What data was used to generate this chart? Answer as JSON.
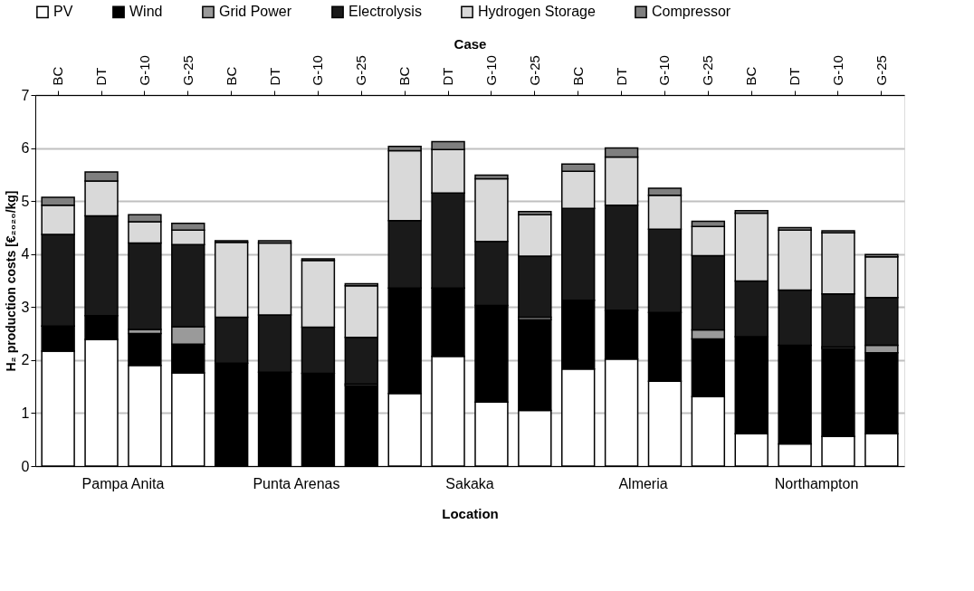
{
  "chart_data": {
    "type": "bar",
    "stacked": true,
    "xlabel": "Location",
    "x2label": "Case",
    "ylabel": "H₂ production costs [€₂₀₂₀/kg]",
    "categories": [
      "BC",
      "DT",
      "G-10",
      "G-25",
      "BC",
      "DT",
      "G-10",
      "G-25",
      "BC",
      "DT",
      "G-10",
      "G-25",
      "BC",
      "DT",
      "G-10",
      "G-25",
      "BC",
      "DT",
      "G-10",
      "G-25"
    ],
    "series": [
      {
        "name": "PV",
        "color": "#ffffff",
        "values": [
          2.17,
          2.39,
          1.9,
          1.76,
          0,
          0,
          0,
          0,
          1.37,
          2.07,
          1.21,
          1.05,
          1.83,
          2.02,
          1.6,
          1.31,
          0.61,
          0.42,
          0.56,
          0.61
        ]
      },
      {
        "name": "Wind",
        "color": "#000000",
        "values": [
          0.47,
          0.45,
          0.6,
          0.54,
          1.94,
          1.77,
          1.75,
          1.52,
          1.99,
          1.29,
          1.82,
          1.71,
          1.3,
          0.92,
          1.3,
          1.09,
          1.83,
          1.86,
          1.66,
          1.53
        ]
      },
      {
        "name": "Grid Power",
        "color": "#9a9a9a",
        "values": [
          0,
          0,
          0.08,
          0.33,
          0,
          0,
          0,
          0.03,
          0,
          0,
          0,
          0.05,
          0,
          0,
          0,
          0.17,
          0,
          0,
          0.03,
          0.14
        ]
      },
      {
        "name": "Electrolysis",
        "color": "#1a1a1a",
        "values": [
          1.73,
          1.88,
          1.63,
          1.55,
          0.87,
          1.08,
          0.87,
          0.88,
          1.27,
          1.79,
          1.21,
          1.15,
          1.73,
          1.98,
          1.57,
          1.4,
          1.05,
          1.04,
          1.0,
          0.9
        ]
      },
      {
        "name": "Hydrogen Storage",
        "color": "#d9d9d9",
        "values": [
          0.55,
          0.66,
          0.4,
          0.27,
          1.41,
          1.36,
          1.26,
          0.97,
          1.32,
          0.82,
          1.18,
          0.78,
          0.7,
          0.91,
          0.64,
          0.55,
          1.28,
          1.13,
          1.15,
          0.77
        ]
      },
      {
        "name": "Compressor",
        "color": "#7f7f7f",
        "values": [
          0.15,
          0.17,
          0.13,
          0.13,
          0.03,
          0.04,
          0.03,
          0.04,
          0.08,
          0.15,
          0.07,
          0.06,
          0.14,
          0.17,
          0.13,
          0.1,
          0.05,
          0.05,
          0.04,
          0.04
        ]
      }
    ],
    "annotations": [
      "Pampa Anita",
      "Punta Arenas",
      "Sakaka",
      "Almeria",
      "Northampton"
    ],
    "ylim": [
      0,
      7
    ],
    "yticks": [
      0,
      1,
      2,
      3,
      4,
      5,
      6,
      7
    ],
    "grid": "y",
    "legend": "top"
  }
}
